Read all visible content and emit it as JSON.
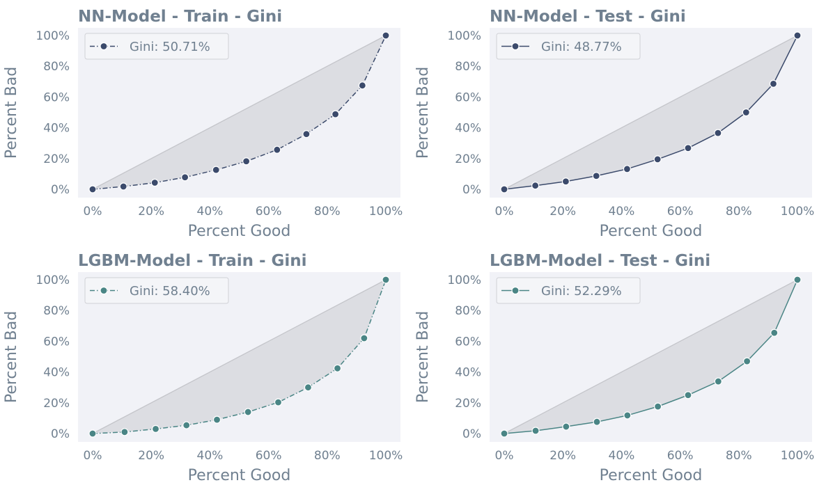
{
  "chart_data": [
    {
      "type": "line",
      "title": "NN-Model - Train - Gini",
      "xlabel": "Percent Good",
      "ylabel": "Percent Bad",
      "xlim": [
        0,
        100
      ],
      "ylim": [
        0,
        100
      ],
      "xticks": [
        "0%",
        "20%",
        "40%",
        "60%",
        "80%",
        "100%"
      ],
      "yticks": [
        "0%",
        "20%",
        "40%",
        "60%",
        "80%",
        "100%"
      ],
      "grid": false,
      "legend_position": "top-left",
      "line_style": "dashdot",
      "color": "#3b4a6b",
      "series": [
        {
          "name": "Gini: 50.71%",
          "x": [
            0,
            10.5,
            21.2,
            31.5,
            42.1,
            52.4,
            62.9,
            72.9,
            82.8,
            92.0,
            100
          ],
          "y": [
            0,
            1.8,
            4.3,
            7.8,
            12.6,
            18.2,
            25.7,
            35.9,
            48.8,
            67.5,
            100
          ]
        }
      ]
    },
    {
      "type": "line",
      "title": "NN-Model - Test - Gini",
      "xlabel": "Percent Good",
      "ylabel": "Percent Bad",
      "xlim": [
        0,
        100
      ],
      "ylim": [
        0,
        100
      ],
      "xticks": [
        "0%",
        "20%",
        "40%",
        "60%",
        "80%",
        "100%"
      ],
      "yticks": [
        "0%",
        "20%",
        "40%",
        "60%",
        "80%",
        "100%"
      ],
      "grid": false,
      "legend_position": "top-left",
      "line_style": "solid",
      "color": "#3b4a6b",
      "series": [
        {
          "name": "Gini: 48.77%",
          "x": [
            0,
            10.6,
            21.0,
            31.4,
            41.9,
            52.3,
            62.7,
            72.9,
            82.5,
            91.8,
            100
          ],
          "y": [
            0,
            2.4,
            5.1,
            8.7,
            13.2,
            19.5,
            26.8,
            36.6,
            50.0,
            68.6,
            100
          ]
        }
      ]
    },
    {
      "type": "line",
      "title": "LGBM-Model - Train - Gini",
      "xlabel": "Percent Good",
      "ylabel": "Percent Bad",
      "xlim": [
        0,
        100
      ],
      "ylim": [
        0,
        100
      ],
      "xticks": [
        "0%",
        "20%",
        "40%",
        "60%",
        "80%",
        "100%"
      ],
      "yticks": [
        "0%",
        "20%",
        "40%",
        "60%",
        "80%",
        "100%"
      ],
      "grid": false,
      "legend_position": "top-left",
      "line_style": "dashdot",
      "color": "#4a8585",
      "series": [
        {
          "name": "Gini: 58.40%",
          "x": [
            0,
            10.9,
            21.5,
            32.0,
            42.4,
            53.0,
            63.3,
            73.5,
            83.5,
            92.6,
            100
          ],
          "y": [
            0,
            1.0,
            3.0,
            5.4,
            9.0,
            14.0,
            20.3,
            30.0,
            42.4,
            62.0,
            100
          ]
        }
      ]
    },
    {
      "type": "line",
      "title": "LGBM-Model - Test - Gini",
      "xlabel": "Percent Good",
      "ylabel": "Percent Bad",
      "xlim": [
        0,
        100
      ],
      "ylim": [
        0,
        100
      ],
      "xticks": [
        "0%",
        "20%",
        "40%",
        "60%",
        "80%",
        "100%"
      ],
      "yticks": [
        "0%",
        "20%",
        "40%",
        "60%",
        "80%",
        "100%"
      ],
      "grid": false,
      "legend_position": "top-left",
      "line_style": "solid",
      "color": "#4a8585",
      "series": [
        {
          "name": "Gini: 52.29%",
          "x": [
            0,
            10.7,
            21.1,
            31.6,
            42.0,
            52.4,
            62.7,
            73.0,
            82.8,
            92.1,
            100
          ],
          "y": [
            0,
            1.8,
            4.5,
            7.6,
            11.8,
            17.6,
            25.0,
            33.9,
            47.0,
            65.5,
            100
          ]
        }
      ]
    }
  ]
}
